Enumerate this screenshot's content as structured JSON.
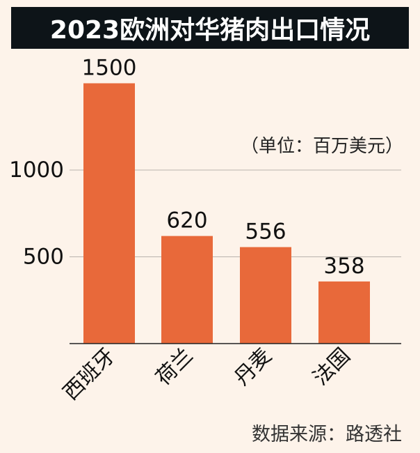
{
  "colors": {
    "background": "#fdf3ea",
    "bar": "#e8693a",
    "title_bg": "#0d1418",
    "title_text": "#ffffff",
    "grid": "#b9b3ad",
    "axis": "#222222"
  },
  "chart_data": {
    "type": "bar",
    "title": "2023欧洲对华猪肉出口情况",
    "unit_note": "（单位：百万美元）",
    "source_note": "数据来源：路透社",
    "categories": [
      "西班牙",
      "荷兰",
      "丹麦",
      "法国"
    ],
    "values": [
      1500,
      620,
      556,
      358
    ],
    "value_labels": [
      "1500",
      "620",
      "556",
      "358"
    ],
    "yticks": [
      500,
      1000
    ],
    "ytick_labels": [
      "500",
      "1000"
    ],
    "ylim": [
      0,
      1500
    ],
    "grid": true,
    "xlabel": "",
    "ylabel": ""
  }
}
